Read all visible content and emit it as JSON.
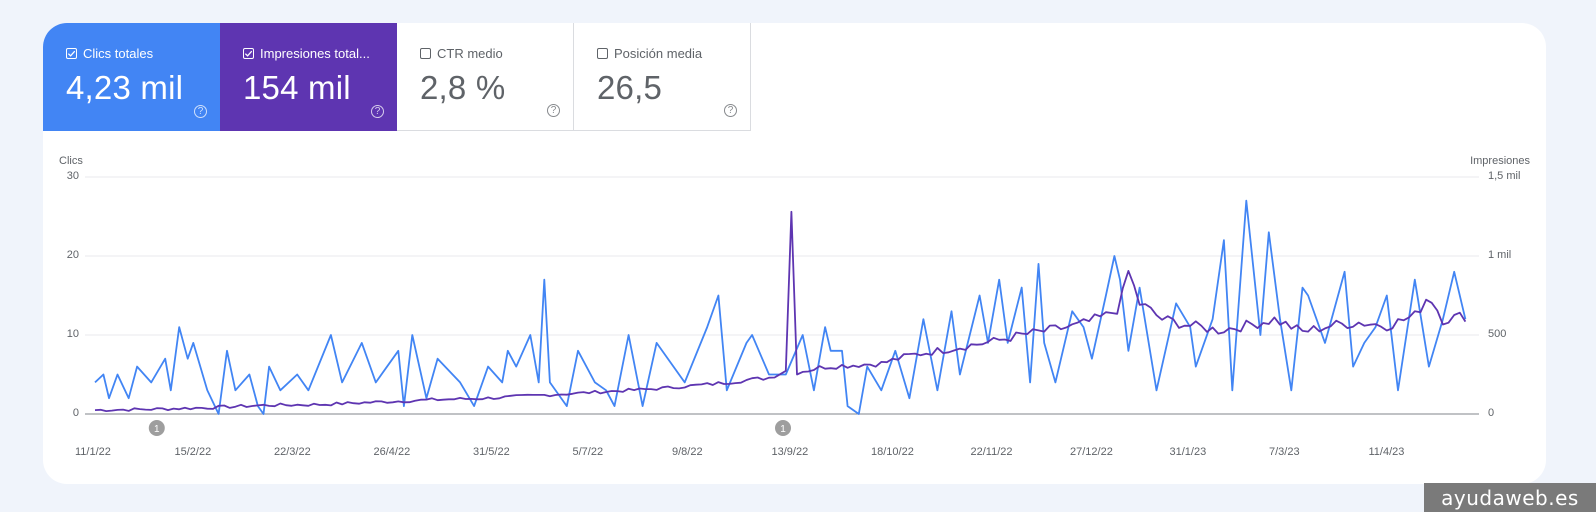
{
  "metrics": [
    {
      "label": "Clics totales",
      "value": "4,23 mil",
      "checked": true,
      "color": "#4285f4"
    },
    {
      "label": "Impresiones total...",
      "value": "154 mil",
      "checked": true,
      "color": "#5e35b1"
    },
    {
      "label": "CTR medio",
      "value": "2,8 %",
      "checked": false
    },
    {
      "label": "Posición media",
      "value": "26,5",
      "checked": false
    }
  ],
  "help_glyph": "?",
  "watermark": "ayudaweb.es",
  "chart_data": {
    "type": "line",
    "title": "",
    "left_axis": {
      "title": "Clics",
      "ticks": [
        "30",
        "20",
        "10",
        "0"
      ],
      "range": [
        0,
        30
      ]
    },
    "right_axis": {
      "title": "Impresiones",
      "ticks": [
        "1,5 mil",
        "1 mil",
        "500",
        "0"
      ],
      "range": [
        0,
        1500
      ]
    },
    "x_ticks": [
      "11/1/22",
      "15/2/22",
      "22/3/22",
      "26/4/22",
      "31/5/22",
      "5/7/22",
      "9/8/22",
      "13/9/22",
      "18/10/22",
      "22/11/22",
      "27/12/22",
      "31/1/23",
      "7/3/23",
      "11/4/23"
    ],
    "x_range_days": [
      0,
      490
    ],
    "annotations": [
      {
        "day": 22,
        "label": "1"
      },
      {
        "day": 245,
        "label": "1"
      }
    ],
    "grid": true,
    "series": [
      {
        "name": "Clics",
        "axis": "left",
        "color": "#4285f4",
        "keypoints": [
          [
            0,
            4
          ],
          [
            3,
            5
          ],
          [
            5,
            2
          ],
          [
            8,
            5
          ],
          [
            12,
            2
          ],
          [
            15,
            6
          ],
          [
            20,
            4
          ],
          [
            25,
            7
          ],
          [
            27,
            3
          ],
          [
            30,
            11
          ],
          [
            33,
            7
          ],
          [
            35,
            9
          ],
          [
            40,
            3
          ],
          [
            44,
            0
          ],
          [
            47,
            8
          ],
          [
            50,
            3
          ],
          [
            55,
            5
          ],
          [
            58,
            1
          ],
          [
            60,
            0
          ],
          [
            62,
            6
          ],
          [
            66,
            3
          ],
          [
            72,
            5
          ],
          [
            76,
            3
          ],
          [
            84,
            10
          ],
          [
            88,
            4
          ],
          [
            95,
            9
          ],
          [
            100,
            4
          ],
          [
            108,
            8
          ],
          [
            110,
            1
          ],
          [
            113,
            10
          ],
          [
            118,
            2
          ],
          [
            122,
            7
          ],
          [
            130,
            4
          ],
          [
            135,
            1
          ],
          [
            140,
            6
          ],
          [
            145,
            4
          ],
          [
            147,
            8
          ],
          [
            150,
            6
          ],
          [
            155,
            10
          ],
          [
            158,
            4
          ],
          [
            160,
            17
          ],
          [
            162,
            4
          ],
          [
            168,
            1
          ],
          [
            172,
            8
          ],
          [
            178,
            4
          ],
          [
            182,
            3
          ],
          [
            185,
            1
          ],
          [
            190,
            10
          ],
          [
            195,
            1
          ],
          [
            200,
            9
          ],
          [
            210,
            4
          ],
          [
            218,
            11
          ],
          [
            222,
            15
          ],
          [
            225,
            3
          ],
          [
            232,
            9
          ],
          [
            234,
            10
          ],
          [
            240,
            5
          ],
          [
            246,
            5
          ],
          [
            252,
            10
          ],
          [
            256,
            3
          ],
          [
            260,
            11
          ],
          [
            262,
            8
          ],
          [
            266,
            8
          ],
          [
            268,
            1
          ],
          [
            272,
            0
          ],
          [
            275,
            6
          ],
          [
            280,
            3
          ],
          [
            285,
            8
          ],
          [
            290,
            2
          ],
          [
            295,
            12
          ],
          [
            300,
            3
          ],
          [
            305,
            13
          ],
          [
            308,
            5
          ],
          [
            315,
            15
          ],
          [
            318,
            9
          ],
          [
            322,
            17
          ],
          [
            325,
            9
          ],
          [
            330,
            16
          ],
          [
            333,
            4
          ],
          [
            336,
            19
          ],
          [
            338,
            9
          ],
          [
            342,
            4
          ],
          [
            348,
            13
          ],
          [
            352,
            11
          ],
          [
            355,
            7
          ],
          [
            360,
            15
          ],
          [
            363,
            20
          ],
          [
            365,
            17
          ],
          [
            368,
            8
          ],
          [
            372,
            16
          ],
          [
            378,
            3
          ],
          [
            385,
            14
          ],
          [
            390,
            11
          ],
          [
            392,
            6
          ],
          [
            398,
            12
          ],
          [
            402,
            22
          ],
          [
            405,
            3
          ],
          [
            410,
            27
          ],
          [
            415,
            10
          ],
          [
            418,
            23
          ],
          [
            422,
            12
          ],
          [
            426,
            3
          ],
          [
            430,
            16
          ],
          [
            432,
            15
          ],
          [
            438,
            9
          ],
          [
            445,
            18
          ],
          [
            448,
            6
          ],
          [
            452,
            9
          ],
          [
            456,
            11
          ],
          [
            460,
            15
          ],
          [
            464,
            3
          ],
          [
            470,
            17
          ],
          [
            475,
            6
          ],
          [
            480,
            12
          ],
          [
            484,
            18
          ],
          [
            488,
            12
          ]
        ]
      },
      {
        "name": "Impresiones",
        "axis": "right",
        "color": "#5e35b1",
        "keypoints": [
          [
            0,
            25
          ],
          [
            20,
            30
          ],
          [
            40,
            40
          ],
          [
            60,
            55
          ],
          [
            80,
            60
          ],
          [
            100,
            75
          ],
          [
            120,
            90
          ],
          [
            140,
            100
          ],
          [
            160,
            120
          ],
          [
            180,
            140
          ],
          [
            200,
            160
          ],
          [
            220,
            190
          ],
          [
            240,
            230
          ],
          [
            247,
            280
          ],
          [
            248,
            1280
          ],
          [
            249,
            260
          ],
          [
            260,
            300
          ],
          [
            270,
            310
          ],
          [
            280,
            320
          ],
          [
            290,
            370
          ],
          [
            300,
            400
          ],
          [
            310,
            430
          ],
          [
            320,
            460
          ],
          [
            330,
            500
          ],
          [
            340,
            530
          ],
          [
            350,
            560
          ],
          [
            360,
            620
          ],
          [
            365,
            680
          ],
          [
            368,
            900
          ],
          [
            372,
            700
          ],
          [
            380,
            600
          ],
          [
            390,
            560
          ],
          [
            400,
            530
          ],
          [
            410,
            560
          ],
          [
            420,
            600
          ],
          [
            430,
            520
          ],
          [
            440,
            560
          ],
          [
            450,
            580
          ],
          [
            460,
            560
          ],
          [
            470,
            620
          ],
          [
            475,
            760
          ],
          [
            480,
            600
          ],
          [
            488,
            620
          ]
        ]
      }
    ]
  }
}
